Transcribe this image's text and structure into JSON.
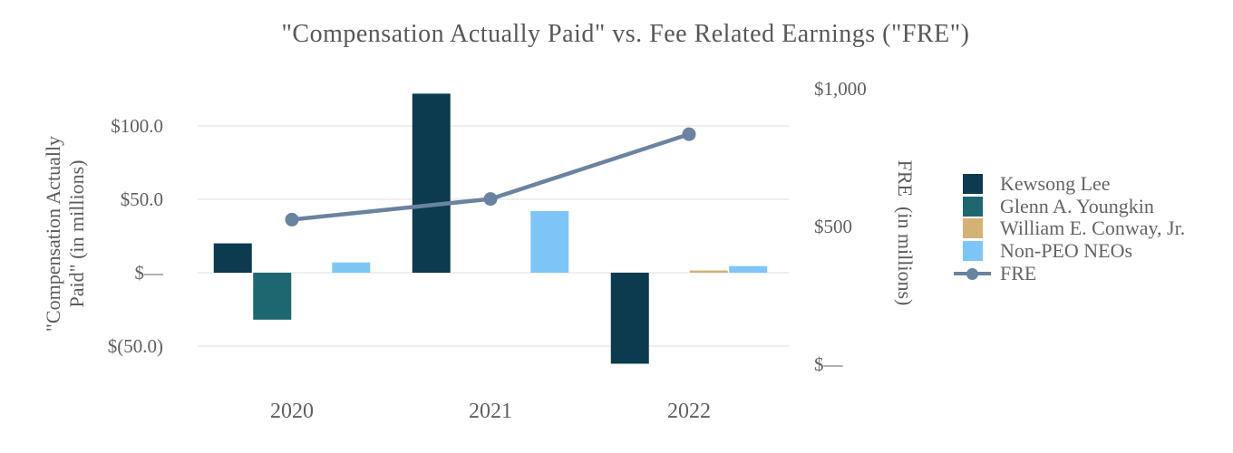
{
  "chart_data": {
    "type": "bar",
    "combo": "grouped vertical bars (left axis) with one line series on secondary right axis",
    "title": "\"Compensation Actually Paid\" vs. Fee Related Earnings (\"FRE\")",
    "categories": [
      "2020",
      "2021",
      "2022"
    ],
    "bar_series": [
      {
        "name": "Kewsong Lee",
        "color": "#0c3a4e",
        "values": [
          20,
          122,
          -62
        ]
      },
      {
        "name": "Glenn A. Youngkin",
        "color": "#1e6770",
        "values": [
          -32,
          null,
          null
        ]
      },
      {
        "name": "William E. Conway, Jr.",
        "color": "#d4b274",
        "values": [
          null,
          null,
          1.5
        ]
      },
      {
        "name": "Non-PEO NEOs",
        "color": "#7ec5f7",
        "values": [
          7,
          42,
          4.5
        ]
      }
    ],
    "line_series": {
      "name": "FRE",
      "color": "#6a83a0",
      "axis": "right",
      "values": [
        525,
        600,
        835
      ]
    },
    "left_axis": {
      "title_line1": "\"Compensation Actually",
      "title_line2": "Paid\" (in millions)",
      "ylim": [
        -50,
        100
      ],
      "ticks": [
        {
          "label": "$100.0",
          "value": 100
        },
        {
          "label": "$50.0",
          "value": 50
        },
        {
          "label": "$—",
          "value": 0
        },
        {
          "label": "$(50.0)",
          "value": -50
        }
      ]
    },
    "right_axis": {
      "title": "FRE  (in millions)",
      "ylim": [
        0,
        1000
      ],
      "ticks": [
        {
          "label": "$1,000",
          "value": 1000
        },
        {
          "label": "$500",
          "value": 500
        },
        {
          "label": "$—",
          "value": 0
        }
      ]
    },
    "legend": {
      "position": "right",
      "entries": [
        "Kewsong Lee",
        "Glenn A. Youngkin",
        "William E. Conway, Jr.",
        "Non-PEO NEOs",
        "FRE"
      ]
    },
    "grid": "horizontal light lines at left-axis ticks only",
    "grid_color": "#eaeaea",
    "background": "#ffffff",
    "text_color": "#5c5c5e"
  }
}
